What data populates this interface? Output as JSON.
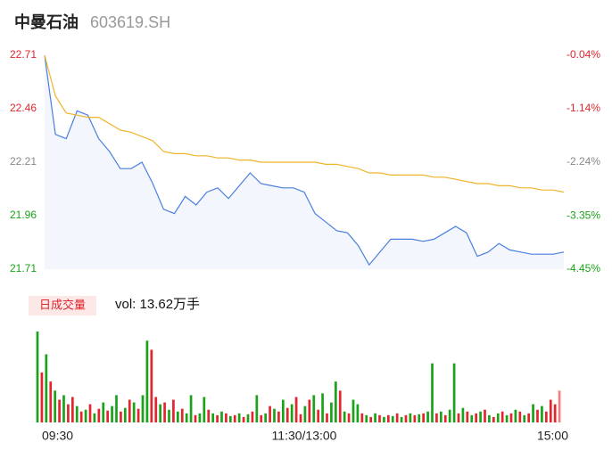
{
  "chart_data": {
    "type": "intraday",
    "title": "中曼石油",
    "subtitle": "603619.SH",
    "x": [
      0,
      5,
      10,
      15,
      20,
      25,
      30,
      35,
      40,
      45,
      50,
      55,
      60,
      65,
      70,
      75,
      80,
      85,
      90,
      95,
      100,
      105,
      110,
      115,
      120,
      125,
      130,
      135,
      140,
      145,
      150,
      155,
      160,
      165,
      170,
      175,
      180,
      185,
      190,
      195,
      200,
      205,
      210,
      215,
      220,
      225,
      230,
      235,
      240
    ],
    "series": [
      {
        "color": "#4a7fe0",
        "values": [
          22.71,
          22.34,
          22.32,
          22.45,
          22.43,
          22.32,
          22.26,
          22.18,
          22.18,
          22.21,
          22.11,
          21.99,
          21.97,
          22.05,
          22.01,
          22.07,
          22.09,
          22.04,
          22.1,
          22.16,
          22.11,
          22.1,
          22.09,
          22.09,
          22.07,
          21.97,
          21.93,
          21.89,
          21.88,
          21.82,
          21.73,
          21.79,
          21.85,
          21.85,
          21.85,
          21.84,
          21.85,
          21.88,
          21.91,
          21.88,
          21.77,
          21.79,
          21.83,
          21.8,
          21.79,
          21.78,
          21.78,
          21.78,
          21.79
        ]
      },
      {
        "color": "#f0b429",
        "values": [
          22.71,
          22.52,
          22.44,
          22.43,
          22.42,
          22.42,
          22.39,
          22.36,
          22.35,
          22.33,
          22.31,
          22.26,
          22.25,
          22.25,
          22.24,
          22.24,
          22.23,
          22.23,
          22.22,
          22.22,
          22.21,
          22.21,
          22.21,
          22.21,
          22.21,
          22.21,
          22.2,
          22.2,
          22.19,
          22.18,
          22.16,
          22.16,
          22.15,
          22.15,
          22.15,
          22.15,
          22.14,
          22.14,
          22.13,
          22.12,
          22.11,
          22.11,
          22.1,
          22.1,
          22.09,
          22.09,
          22.08,
          22.08,
          22.07
        ]
      }
    ],
    "xlim": [
      0,
      240
    ],
    "xticks": [
      {
        "value": 0,
        "label": "09:30"
      },
      {
        "value": 120,
        "label": "11:30/13:00"
      },
      {
        "value": 240,
        "label": "15:00"
      }
    ],
    "ylim": [
      21.71,
      22.71
    ],
    "yticks": [
      21.71,
      21.96,
      22.21,
      22.46,
      22.71
    ],
    "ytick_colors": [
      "#1aa31a",
      "#1aa31a",
      "#888888",
      "#e0262e",
      "#e0262e"
    ],
    "y2lim": [
      -4.45,
      -0.04
    ],
    "y2ticks": [
      {
        "value": -4.45,
        "label": "-4.45%"
      },
      {
        "value": -3.35,
        "label": "-3.35%"
      },
      {
        "value": -2.24,
        "label": "-2.24%"
      },
      {
        "value": -1.14,
        "label": "-1.14%"
      },
      {
        "value": -0.04,
        "label": "-0.04%"
      }
    ],
    "volume": {
      "title": "日成交量",
      "label": "vol: 13.62万手",
      "x": [
        0,
        2,
        4,
        6,
        8,
        10,
        12,
        14,
        16,
        18,
        20,
        22,
        24,
        26,
        28,
        30,
        32,
        34,
        36,
        38,
        40,
        42,
        44,
        46,
        48,
        50,
        52,
        54,
        56,
        58,
        60,
        62,
        64,
        66,
        68,
        70,
        72,
        74,
        76,
        78,
        80,
        82,
        84,
        86,
        88,
        90,
        92,
        94,
        96,
        98,
        100,
        102,
        104,
        106,
        108,
        110,
        112,
        114,
        116,
        118,
        120,
        122,
        124,
        126,
        128,
        130,
        132,
        134,
        136,
        138,
        140,
        142,
        144,
        146,
        148,
        150,
        152,
        154,
        156,
        158,
        160,
        162,
        164,
        166,
        168,
        170,
        172,
        174,
        176,
        178,
        180,
        182,
        184,
        186,
        188,
        190,
        192,
        194,
        196,
        198,
        200,
        202,
        204,
        206,
        208,
        210,
        212,
        214,
        216,
        218,
        220,
        222,
        224,
        226,
        228,
        230,
        232,
        234,
        236,
        238
      ],
      "values": [
        100,
        55,
        75,
        45,
        35,
        25,
        30,
        20,
        28,
        18,
        12,
        14,
        20,
        10,
        15,
        22,
        13,
        18,
        30,
        12,
        16,
        25,
        22,
        15,
        30,
        90,
        80,
        28,
        20,
        22,
        14,
        25,
        12,
        15,
        10,
        30,
        8,
        10,
        28,
        14,
        10,
        8,
        12,
        10,
        7,
        8,
        10,
        6,
        9,
        12,
        30,
        8,
        10,
        18,
        15,
        12,
        25,
        16,
        20,
        28,
        9,
        18,
        25,
        30,
        14,
        32,
        10,
        22,
        45,
        35,
        12,
        10,
        25,
        20,
        10,
        8,
        6,
        10,
        8,
        6,
        8,
        7,
        10,
        6,
        8,
        10,
        8,
        9,
        10,
        12,
        65,
        10,
        12,
        8,
        14,
        65,
        10,
        16,
        12,
        8,
        10,
        12,
        14,
        8,
        6,
        10,
        12,
        8,
        10,
        14,
        12,
        8,
        10,
        20,
        14,
        18,
        12,
        25,
        20,
        35
      ],
      "colors": [
        "#1aa31a",
        "#e0262e",
        "#1aa31a",
        "#e0262e",
        "#1aa31a",
        "#e0262e",
        "#1aa31a",
        "#e0262e",
        "#e0262e",
        "#1aa31a",
        "#e0262e",
        "#1aa31a",
        "#e0262e",
        "#1aa31a",
        "#e0262e",
        "#1aa31a",
        "#e0262e",
        "#1aa31a",
        "#1aa31a",
        "#e0262e",
        "#1aa31a",
        "#e0262e",
        "#1aa31a",
        "#e0262e",
        "#1aa31a",
        "#1aa31a",
        "#e0262e",
        "#e0262e",
        "#1aa31a",
        "#e0262e",
        "#1aa31a",
        "#e0262e",
        "#1aa31a",
        "#e0262e",
        "#1aa31a",
        "#1aa31a",
        "#e0262e",
        "#1aa31a",
        "#1aa31a",
        "#e0262e",
        "#1aa31a",
        "#e0262e",
        "#1aa31a",
        "#e0262e",
        "#1aa31a",
        "#e0262e",
        "#1aa31a",
        "#e0262e",
        "#1aa31a",
        "#e0262e",
        "#1aa31a",
        "#e0262e",
        "#1aa31a",
        "#e0262e",
        "#1aa31a",
        "#e0262e",
        "#1aa31a",
        "#e0262e",
        "#1aa31a",
        "#e0262e",
        "#e0262e",
        "#1aa31a",
        "#e0262e",
        "#1aa31a",
        "#e0262e",
        "#1aa31a",
        "#e0262e",
        "#1aa31a",
        "#1aa31a",
        "#e0262e",
        "#1aa31a",
        "#e0262e",
        "#1aa31a",
        "#1aa31a",
        "#e0262e",
        "#1aa31a",
        "#e0262e",
        "#1aa31a",
        "#e0262e",
        "#1aa31a",
        "#e0262e",
        "#1aa31a",
        "#e0262e",
        "#1aa31a",
        "#e0262e",
        "#1aa31a",
        "#e0262e",
        "#1aa31a",
        "#e0262e",
        "#1aa31a",
        "#1aa31a",
        "#e0262e",
        "#1aa31a",
        "#e0262e",
        "#1aa31a",
        "#1aa31a",
        "#e0262e",
        "#1aa31a",
        "#e0262e",
        "#1aa31a",
        "#e0262e",
        "#1aa31a",
        "#e0262e",
        "#1aa31a",
        "#e0262e",
        "#1aa31a",
        "#e0262e",
        "#1aa31a",
        "#e0262e",
        "#1aa31a",
        "#e0262e",
        "#1aa31a",
        "#e0262e",
        "#1aa31a",
        "#e0262e",
        "#1aa31a",
        "#e0262e",
        "#e0262e",
        "#e0262e",
        "#f08080"
      ],
      "ylim": [
        0,
        102
      ]
    }
  }
}
